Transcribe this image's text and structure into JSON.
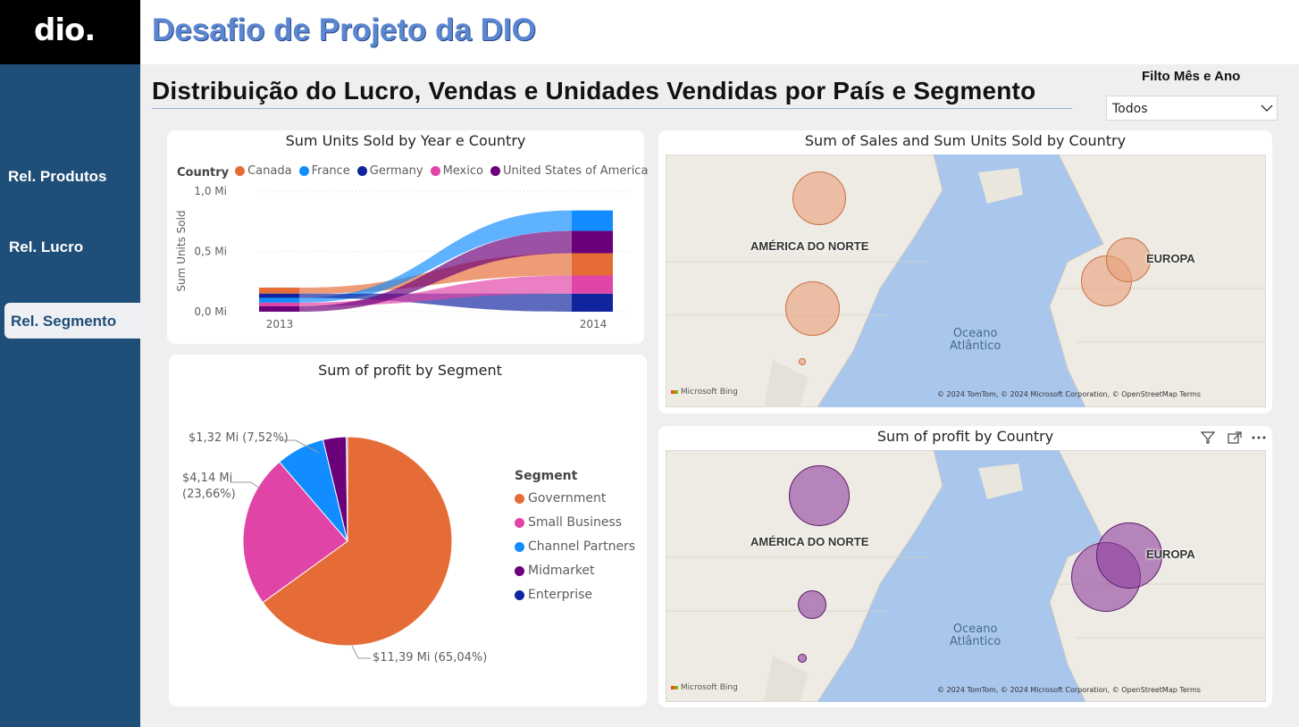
{
  "app": {
    "logo": "dio.",
    "title": "Desafio de Projeto da DIO",
    "subtitle": "Distribuição do Lucro, Vendas e Unidades Vendidas por País e Segmento"
  },
  "sidebar": {
    "items": [
      {
        "label": "Rel. Produtos"
      },
      {
        "label": "Rel. Lucro"
      },
      {
        "label": "Rel. Segmento",
        "active": true
      }
    ]
  },
  "filter": {
    "label": "Filto Mês e Ano",
    "value": "Todos"
  },
  "ribbon_card": {
    "title": "Sum Units Sold by Year e Country",
    "legend_title": "Country",
    "legend": [
      {
        "name": "Canada",
        "color": "#e66c37"
      },
      {
        "name": "France",
        "color": "#118dff"
      },
      {
        "name": "Germany",
        "color": "#12239e"
      },
      {
        "name": "Mexico",
        "color": "#e044a7"
      },
      {
        "name": "United States of America",
        "color": "#6b007b"
      }
    ],
    "ylabel": "Sum Units Sold",
    "yticks": [
      "1,0 Mi",
      "0,5 Mi",
      "0,0 Mi"
    ],
    "xticks": [
      "2013",
      "2014"
    ]
  },
  "chart_data": [
    {
      "type": "area",
      "title": "Sum Units Sold by Year e Country",
      "ylabel": "Sum Units Sold",
      "categories": [
        "2013",
        "2014"
      ],
      "ylim": [
        0,
        1000000
      ],
      "series": [
        {
          "name": "Canada",
          "values": [
            50000,
            185000
          ]
        },
        {
          "name": "France",
          "values": [
            40000,
            170000
          ]
        },
        {
          "name": "Germany",
          "values": [
            35000,
            150000
          ]
        },
        {
          "name": "Mexico",
          "values": [
            30000,
            150000
          ]
        },
        {
          "name": "United States of America",
          "values": [
            45000,
            185000
          ]
        }
      ]
    },
    {
      "type": "pie",
      "title": "Sum of profit by Segment",
      "categories": [
        "Government",
        "Small Business",
        "Channel Partners",
        "Midmarket",
        "Enterprise"
      ],
      "values": [
        65.04,
        23.66,
        7.52,
        3.6,
        0.18
      ],
      "labels": [
        "$11,39 Mi (65,04%)",
        "$4,14 Mi (23,66%)",
        "$1,32 Mi (7,52%)"
      ],
      "legend_title": "Segment",
      "colors": [
        "#e66c37",
        "#e044a7",
        "#118dff",
        "#6b007b",
        "#12239e"
      ]
    }
  ],
  "pie_card": {
    "title": "Sum of profit by Segment",
    "legend_title": "Segment",
    "legend": [
      {
        "name": "Government",
        "color": "#e66c37"
      },
      {
        "name": "Small Business",
        "color": "#e044a7"
      },
      {
        "name": "Channel Partners",
        "color": "#118dff"
      },
      {
        "name": "Midmarket",
        "color": "#6b007b"
      },
      {
        "name": "Enterprise",
        "color": "#12239e"
      }
    ],
    "label_gov": "$11,39 Mi (65,04%)",
    "label_sb_1": "$4,14 Mi",
    "label_sb_2": "(23,66%)",
    "label_cp": "$1,32 Mi (7,52%)"
  },
  "map_sales": {
    "title": "Sum of Sales and Sum Units Sold by Country",
    "label_na": "AMÉRICA DO NORTE",
    "label_eu": "EUROPA",
    "ocean_1": "Oceano",
    "ocean_2": "Atlântico",
    "brand": "Microsoft Bing",
    "attribution": "© 2024 TomTom, © 2024 Microsoft Corporation, © OpenStreetMap  Terms",
    "bubble_color": "#e9a27c"
  },
  "map_profit": {
    "title": "Sum of profit by Country",
    "label_na": "AMÉRICA DO NORTE",
    "label_eu": "EUROPA",
    "ocean_1": "Oceano",
    "ocean_2": "Atlântico",
    "brand": "Microsoft Bing",
    "attribution": "© 2024 TomTom, © 2024 Microsoft Corporation, © OpenStreetMap  Terms",
    "bubble_color": "#8e3f9e",
    "icons": [
      "filter-icon",
      "focus-mode-icon",
      "more-options-icon"
    ]
  }
}
